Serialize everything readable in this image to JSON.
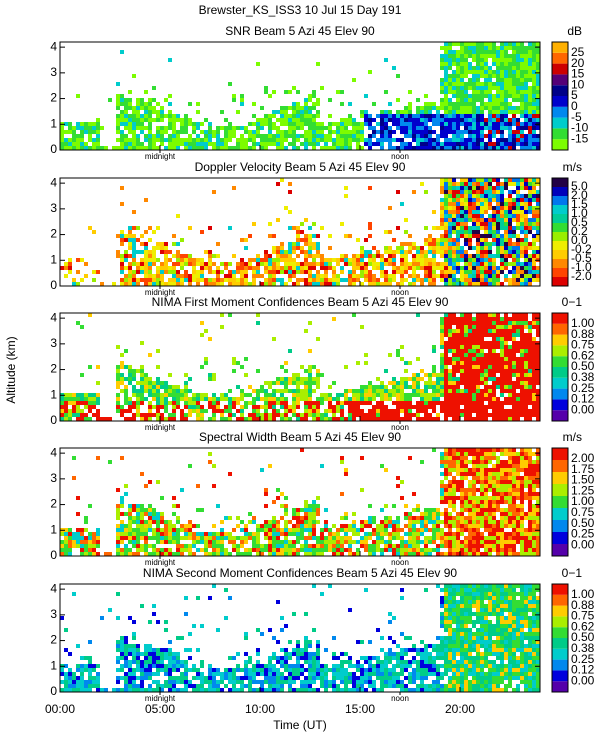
{
  "title": "Brewster_KS_ISS3  10 Jul 15 Day 191",
  "y_label": "Altitude (km)",
  "x_label": "Time (UT)",
  "x_axis": {
    "xlim": [
      0,
      24
    ],
    "xticks": [
      {
        "value": 0,
        "label": "00:00"
      },
      {
        "value": 5,
        "label": "05:00"
      },
      {
        "value": 10,
        "label": "10:00"
      },
      {
        "value": 15,
        "label": "15:00"
      },
      {
        "value": 20,
        "label": "20:00"
      }
    ],
    "markers": [
      {
        "label": "midnight",
        "value": 5
      },
      {
        "label": "noon",
        "value": 17
      }
    ]
  },
  "chart_data": [
    {
      "type": "heatmap",
      "title": "SNR Beam 5 Azi  45 Elev 90",
      "units": "dB",
      "ylim": [
        0,
        4.2
      ],
      "yticks": [
        0,
        1,
        2,
        3,
        4
      ],
      "colorbar": {
        "labels": [
          "-15",
          "-10",
          "-5",
          "0",
          "5",
          "10",
          "15",
          "20",
          "25"
        ],
        "colors": [
          "#7cfc00",
          "#33dd33",
          "#00cccc",
          "#0088ee",
          "#0000cc",
          "#000088",
          "#550077",
          "#cc0000",
          "#ff6600",
          "#ffb000"
        ]
      }
    },
    {
      "type": "heatmap",
      "title": "Doppler Velocity Beam 5 Azi  45 Elev 90",
      "units": "m/s",
      "ylim": [
        0,
        4.2
      ],
      "yticks": [
        0,
        1,
        2,
        3,
        4
      ],
      "colorbar": {
        "labels": [
          "-2.0",
          "-1.0",
          "-0.5",
          "-0.2",
          "0.0",
          "0.2",
          "0.5",
          "1.0",
          "1.5",
          "2.0",
          "5.0"
        ],
        "colors": [
          "#dd0000",
          "#ff4400",
          "#ff8800",
          "#ffcc00",
          "#eeee00",
          "#99ee00",
          "#33dd33",
          "#00cc99",
          "#00cccc",
          "#0077ee",
          "#0000bb",
          "#220044"
        ]
      }
    },
    {
      "type": "heatmap",
      "title": "NIMA First Moment Confidences Beam 5 Azi  45 Elev 90",
      "units": "0−1",
      "ylim": [
        0,
        4.2
      ],
      "yticks": [
        0,
        1,
        2,
        3,
        4
      ],
      "colorbar": {
        "labels": [
          "0.00",
          "0.12",
          "0.25",
          "0.38",
          "0.50",
          "0.62",
          "0.75",
          "0.88",
          "1.00"
        ],
        "colors": [
          "#5500aa",
          "#0000dd",
          "#0088ee",
          "#00cccc",
          "#00cc88",
          "#33dd33",
          "#aaee00",
          "#ffcc00",
          "#ff6600",
          "#ee1100"
        ]
      }
    },
    {
      "type": "heatmap",
      "title": "Spectral Width Beam 5 Azi  45 Elev 90",
      "units": "m/s",
      "ylim": [
        0,
        4.2
      ],
      "yticks": [
        0,
        1,
        2,
        3,
        4
      ],
      "colorbar": {
        "labels": [
          "0.00",
          "0.25",
          "0.50",
          "0.75",
          "1.00",
          "1.25",
          "1.50",
          "1.75",
          "2.00"
        ],
        "colors": [
          "#5500aa",
          "#0000dd",
          "#0088ee",
          "#00cccc",
          "#33dd33",
          "#aaee00",
          "#ffcc00",
          "#ff6600",
          "#ee1100"
        ]
      }
    },
    {
      "type": "heatmap",
      "title": "NIMA Second Moment Confidences Beam 5 Azi  45 Elev 90",
      "units": "0−1",
      "ylim": [
        0,
        4.2
      ],
      "yticks": [
        0,
        1,
        2,
        3,
        4
      ],
      "colorbar": {
        "labels": [
          "0.00",
          "0.12",
          "0.25",
          "0.38",
          "0.50",
          "0.62",
          "0.75",
          "0.88",
          "1.00"
        ],
        "colors": [
          "#5500aa",
          "#0000dd",
          "#0088ee",
          "#00cccc",
          "#00cc88",
          "#33dd33",
          "#aaee00",
          "#ffcc00",
          "#ff6600",
          "#ee1100"
        ]
      }
    }
  ]
}
